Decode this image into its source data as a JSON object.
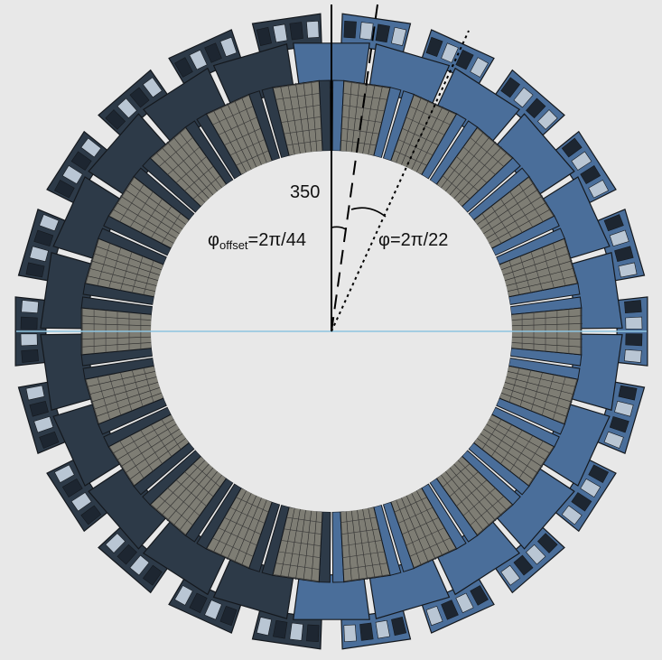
{
  "diagram": {
    "segment_count": 22,
    "labels": {
      "radius": "350",
      "phi_offset_symbol": "φ",
      "phi_offset_subscript": "offset",
      "phi_offset_value": "=2π/44",
      "phi_value": "φ=2π/22"
    },
    "colors": {
      "background": "#e8e8e8",
      "gray_module": "#7e7d74",
      "blue_module": "#4a6e9a",
      "dark_module": "#2d3a48",
      "outline": "#14181d",
      "center_line": "#8ec4e0"
    }
  }
}
